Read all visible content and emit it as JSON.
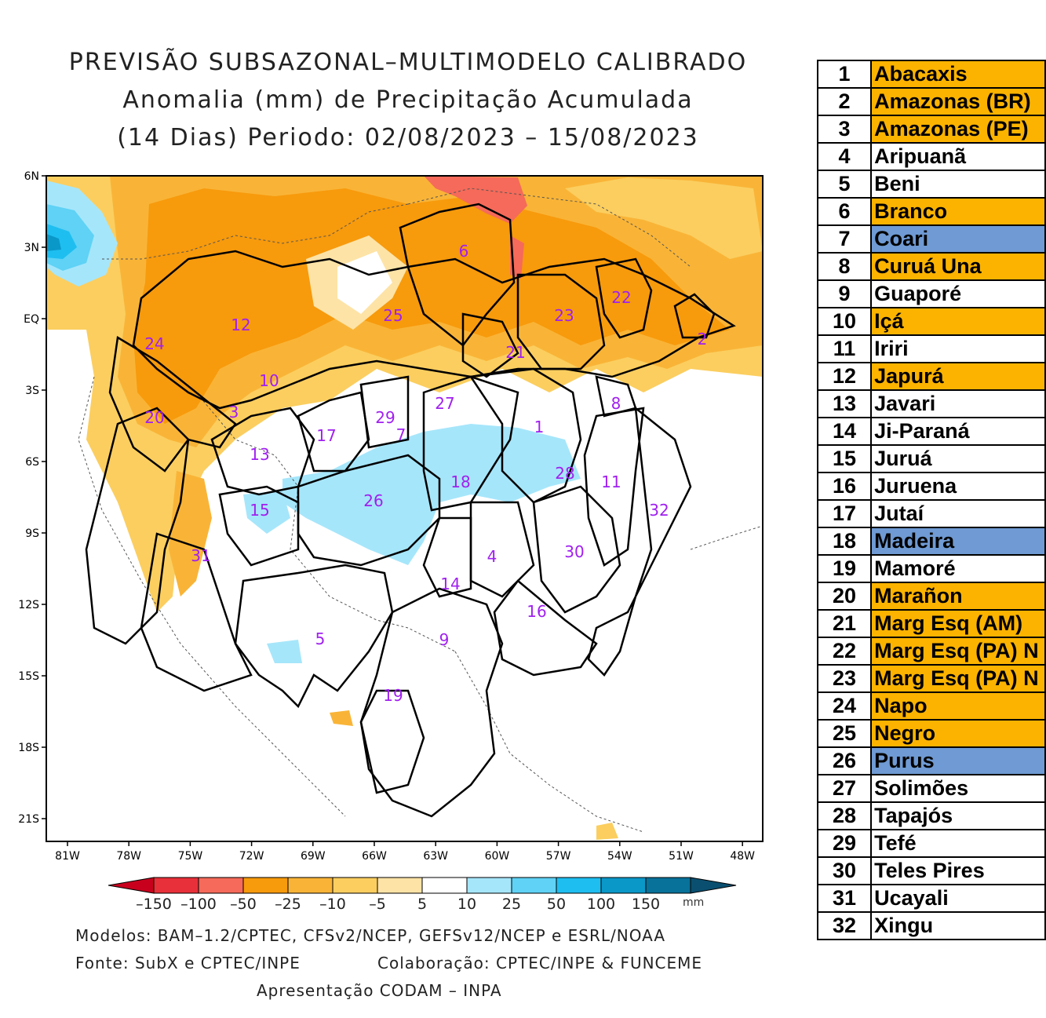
{
  "header": {
    "title_line1": "PREVISÃO SUBSAZONAL–MULTIMODELO CALIBRADO",
    "title_line2": "Anomalia (mm) de Precipitação Acumulada",
    "title_line3": "(14 Dias) Periodo: 02/08/2023 – 15/08/2023"
  },
  "axes": {
    "lat_labels": [
      "6N",
      "3N",
      "EQ",
      "3S",
      "6S",
      "9S",
      "12S",
      "15S",
      "18S",
      "21S"
    ],
    "lon_labels": [
      "81W",
      "78W",
      "75W",
      "72W",
      "69W",
      "66W",
      "63W",
      "60W",
      "57W",
      "54W",
      "51W",
      "48W"
    ]
  },
  "colorbar": {
    "tick_labels": [
      "–150",
      "–100",
      "–50",
      "–25",
      "–10",
      "–5",
      "5",
      "10",
      "25",
      "50",
      "100",
      "150"
    ],
    "unit": "mm",
    "colors": [
      "#c8001e",
      "#e8303a",
      "#f56a5a",
      "#f79a0c",
      "#f9b437",
      "#fbce5f",
      "#fde3a6",
      "#ffffff",
      "#a6e6fb",
      "#5fd2f5",
      "#1ebef0",
      "#0a98c8",
      "#08729a",
      "#0a4f70"
    ]
  },
  "footer": {
    "models": "Modelos: BAM–1.2/CPTEC, CFSv2/NCEP, GEFSv12/NCEP e ESRL/NOAA",
    "source": "Fonte: SubX e CPTEC/INPE",
    "collab": "Colaboração: CPTEC/INPE & FUNCEME",
    "presentation": "Apresentação CODAM – INPA"
  },
  "basin_labels": [
    "1",
    "2",
    "3",
    "4",
    "5",
    "6",
    "7",
    "8",
    "9",
    "10",
    "11",
    "12",
    "13",
    "14",
    "15",
    "16",
    "17",
    "18",
    "19",
    "20",
    "21",
    "22",
    "23",
    "24",
    "25",
    "26",
    "27",
    "28",
    "29",
    "30",
    "31",
    "32"
  ],
  "basins": [
    {
      "num": "1",
      "name": "Abacaxis",
      "color": "#fbb300"
    },
    {
      "num": "2",
      "name": "Amazonas (BR)",
      "color": "#fbb300"
    },
    {
      "num": "3",
      "name": "Amazonas (PE)",
      "color": "#fbb300"
    },
    {
      "num": "4",
      "name": "Aripuanã",
      "color": "#ffffff"
    },
    {
      "num": "5",
      "name": "Beni",
      "color": "#ffffff"
    },
    {
      "num": "6",
      "name": "Branco",
      "color": "#fbb300"
    },
    {
      "num": "7",
      "name": "Coari",
      "color": "#6f9ad3"
    },
    {
      "num": "8",
      "name": "Curuá Una",
      "color": "#fbb300"
    },
    {
      "num": "9",
      "name": "Guaporé",
      "color": "#ffffff"
    },
    {
      "num": "10",
      "name": "Içá",
      "color": "#fbb300"
    },
    {
      "num": "11",
      "name": "Iriri",
      "color": "#ffffff"
    },
    {
      "num": "12",
      "name": "Japurá",
      "color": "#fbb300"
    },
    {
      "num": "13",
      "name": "Javari",
      "color": "#ffffff"
    },
    {
      "num": "14",
      "name": "Ji-Paraná",
      "color": "#ffffff"
    },
    {
      "num": "15",
      "name": "Juruá",
      "color": "#ffffff"
    },
    {
      "num": "16",
      "name": "Juruena",
      "color": "#ffffff"
    },
    {
      "num": "17",
      "name": "Jutaí",
      "color": "#ffffff"
    },
    {
      "num": "18",
      "name": "Madeira",
      "color": "#6f9ad3"
    },
    {
      "num": "19",
      "name": "Mamoré",
      "color": "#ffffff"
    },
    {
      "num": "20",
      "name": "Marañon",
      "color": "#fbb300"
    },
    {
      "num": "21",
      "name": "Marg Esq (AM)",
      "color": "#fbb300"
    },
    {
      "num": "22",
      "name": "Marg Esq (PA) N",
      "color": "#fbb300"
    },
    {
      "num": "23",
      "name": "Marg Esq (PA) N",
      "color": "#fbb300"
    },
    {
      "num": "24",
      "name": "Napo",
      "color": "#fbb300"
    },
    {
      "num": "25",
      "name": "Negro",
      "color": "#fbb300"
    },
    {
      "num": "26",
      "name": "Purus",
      "color": "#6f9ad3"
    },
    {
      "num": "27",
      "name": "Solimões",
      "color": "#ffffff"
    },
    {
      "num": "28",
      "name": "Tapajós",
      "color": "#ffffff"
    },
    {
      "num": "29",
      "name": "Tefé",
      "color": "#ffffff"
    },
    {
      "num": "30",
      "name": "Teles Pires",
      "color": "#ffffff"
    },
    {
      "num": "31",
      "name": "Ucayali",
      "color": "#ffffff"
    },
    {
      "num": "32",
      "name": "Xingu",
      "color": "#ffffff"
    }
  ]
}
